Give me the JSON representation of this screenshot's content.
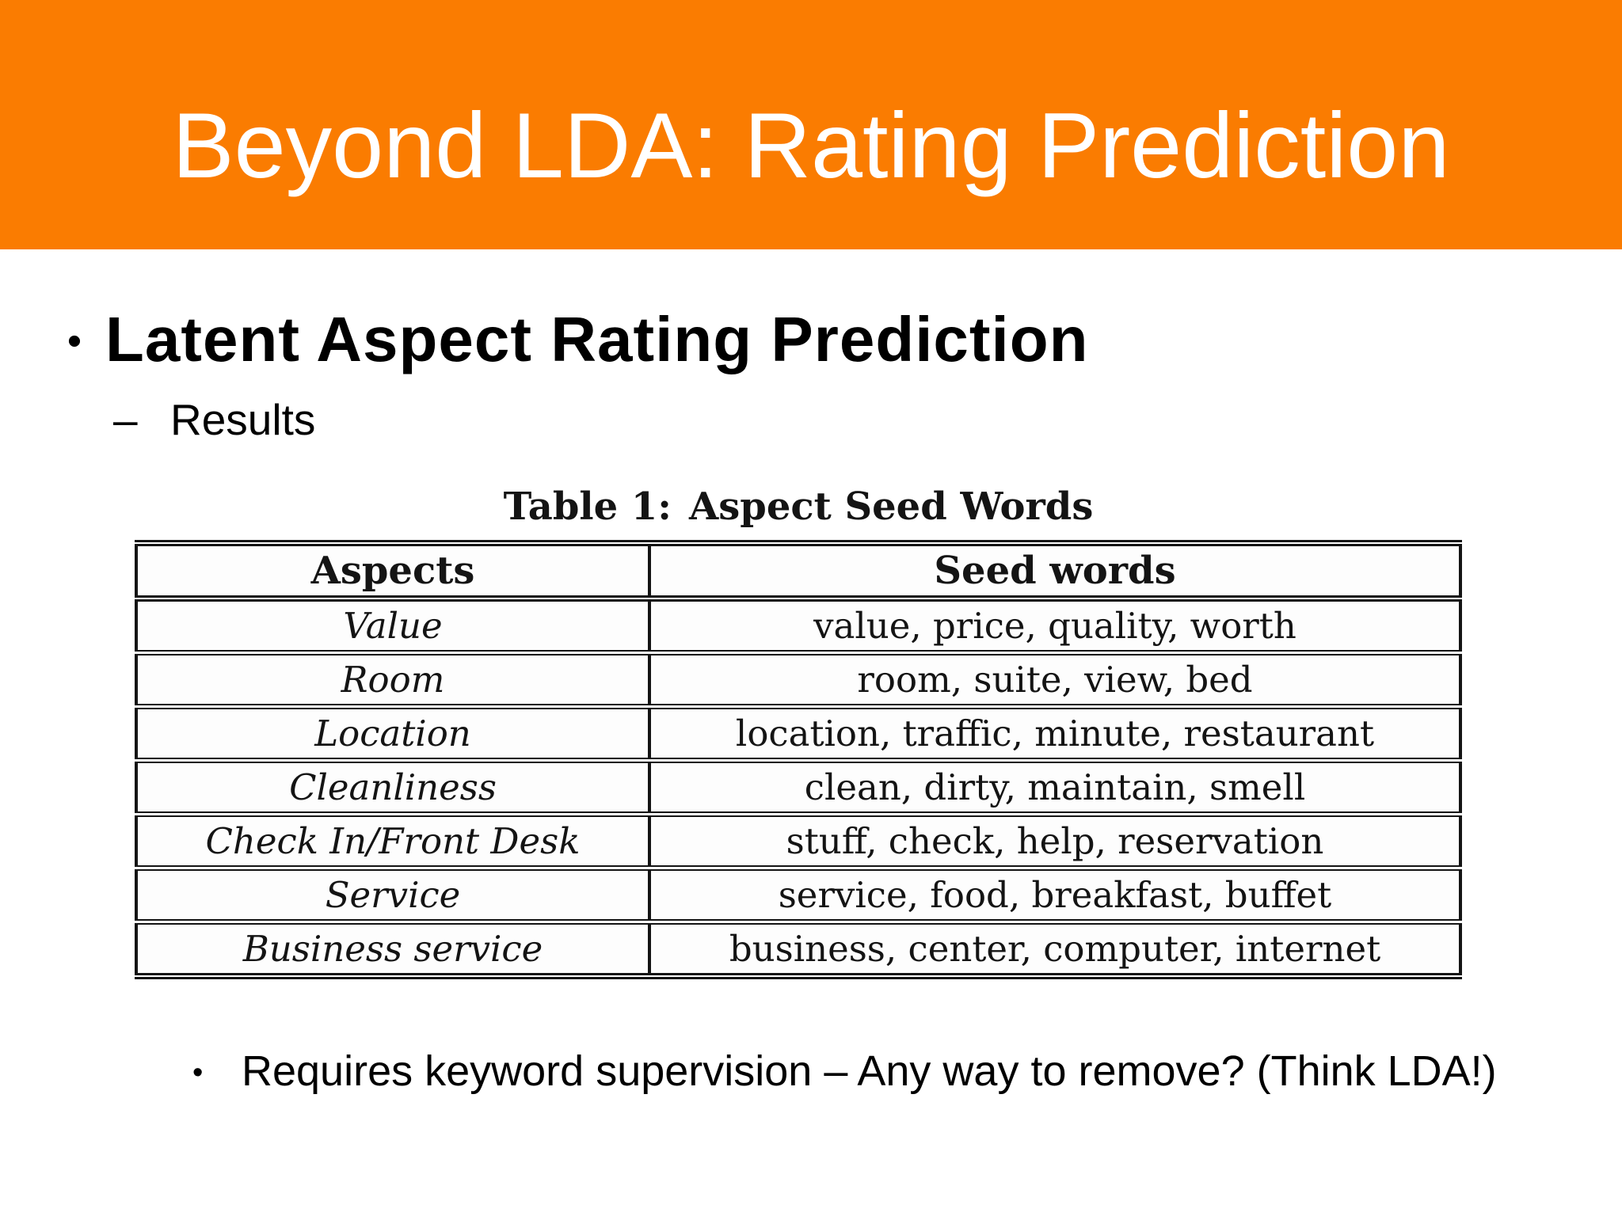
{
  "slide": {
    "background_color": "#FFFFFF",
    "banner_color": "#FA7C01",
    "title": "Beyond LDA: Rating Prediction",
    "title_color": "#FFFFFF"
  },
  "content": {
    "bullet1_marker": "•",
    "bullet1_text": "Latent Aspect Rating Prediction",
    "bullet2_marker": "–",
    "bullet2_text": "Results",
    "bottom_bullet_marker": "•",
    "bottom_bullet_text": "Requires keyword supervision – Any way to remove? (Think LDA!)"
  },
  "table_figure": {
    "caption_label": "Table 1:",
    "caption_text": "Aspect Seed Words",
    "columns": [
      "Aspects",
      "Seed words"
    ],
    "rows": [
      {
        "aspect": "Value",
        "seed_words": "value, price, quality, worth"
      },
      {
        "aspect": "Room",
        "seed_words": "room, suite, view, bed"
      },
      {
        "aspect": "Location",
        "seed_words": "location, traffic, minute, restaurant"
      },
      {
        "aspect": "Cleanliness",
        "seed_words": "clean, dirty, maintain, smell"
      },
      {
        "aspect": "Check In/Front Desk",
        "seed_words": "stuff, check, help, reservation"
      },
      {
        "aspect": "Service",
        "seed_words": "service, food, breakfast, buffet"
      },
      {
        "aspect": "Business service",
        "seed_words": "business, center, computer, internet"
      }
    ]
  }
}
